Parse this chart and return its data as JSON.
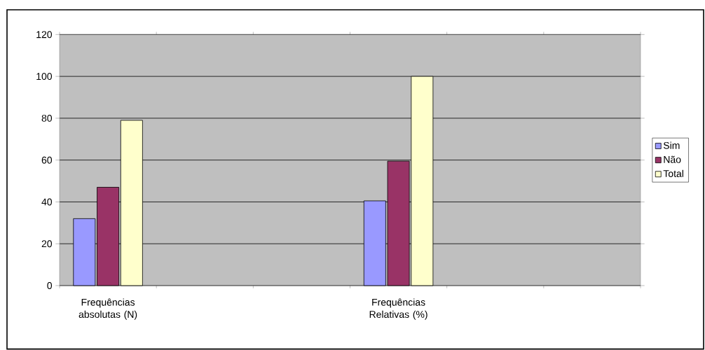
{
  "chart_data": {
    "type": "bar",
    "categories": [
      "Frequências absolutas (N)",
      null,
      null,
      "Frequências Relativas (%)",
      null,
      null
    ],
    "series": [
      {
        "name": "Sim",
        "color": "#9999ff",
        "values": [
          32,
          null,
          null,
          40.5,
          null,
          null
        ]
      },
      {
        "name": "Não",
        "color": "#993366",
        "values": [
          47,
          null,
          null,
          59.5,
          null,
          null
        ]
      },
      {
        "name": "Total",
        "color": "#ffffcc",
        "values": [
          79,
          null,
          null,
          100,
          null,
          null
        ]
      }
    ],
    "ylim": [
      0,
      120
    ],
    "yticks": [
      0,
      20,
      40,
      60,
      80,
      100,
      120
    ],
    "grid": "y",
    "legend": "right"
  }
}
